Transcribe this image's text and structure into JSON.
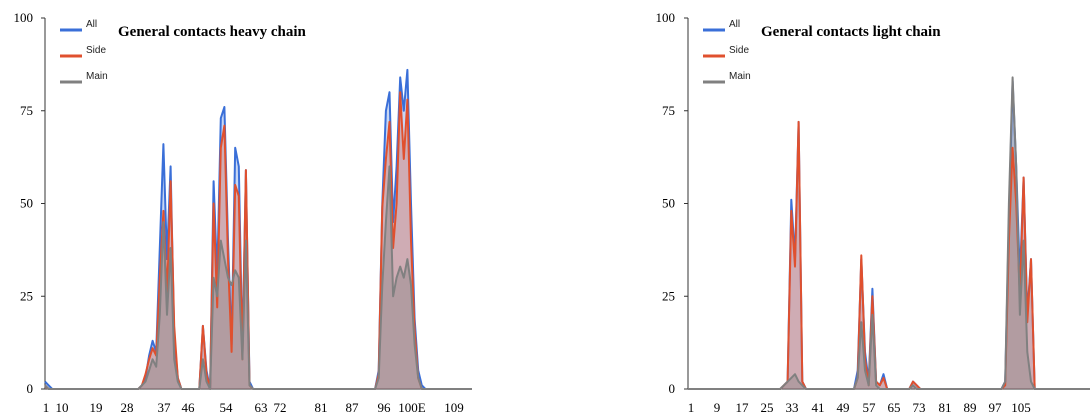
{
  "colors": {
    "all": "#3a6fd8",
    "side": "#e0502e",
    "main": "#808080",
    "area_fill": "#c69ea0",
    "axis": "#333333"
  },
  "chart_data": [
    {
      "type": "area",
      "title": "General contacts heavy chain",
      "xlabel": "",
      "ylabel": "",
      "ylim": [
        0,
        100
      ],
      "yticks": [
        "0",
        "25",
        "50",
        "75",
        "100"
      ],
      "xticks": [
        "1",
        "10",
        "19",
        "28",
        "37",
        "46",
        "54",
        "63",
        "72",
        "81",
        "87",
        "96",
        "100E",
        "109"
      ],
      "n_points": 120,
      "legend_position": "top-left",
      "grid": false,
      "series": [
        {
          "name": "All",
          "points": [
            [
              0,
              2
            ],
            [
              1,
              1
            ],
            [
              2,
              0
            ],
            [
              26,
              0
            ],
            [
              27,
              1
            ],
            [
              28,
              3
            ],
            [
              29,
              9
            ],
            [
              30,
              13
            ],
            [
              31,
              10
            ],
            [
              32,
              38
            ],
            [
              33,
              66
            ],
            [
              34,
              35
            ],
            [
              35,
              60
            ],
            [
              36,
              14
            ],
            [
              37,
              3
            ],
            [
              38,
              0
            ],
            [
              43,
              0
            ],
            [
              44,
              17
            ],
            [
              45,
              5
            ],
            [
              46,
              0
            ],
            [
              47,
              56
            ],
            [
              48,
              30
            ],
            [
              49,
              73
            ],
            [
              50,
              76
            ],
            [
              51,
              40
            ],
            [
              52,
              12
            ],
            [
              53,
              65
            ],
            [
              54,
              60
            ],
            [
              55,
              10
            ],
            [
              56,
              59
            ],
            [
              57,
              2
            ],
            [
              58,
              0
            ],
            [
              92,
              0
            ],
            [
              93,
              5
            ],
            [
              94,
              50
            ],
            [
              95,
              75
            ],
            [
              96,
              80
            ],
            [
              97,
              45
            ],
            [
              98,
              60
            ],
            [
              99,
              84
            ],
            [
              100,
              75
            ],
            [
              101,
              86
            ],
            [
              102,
              50
            ],
            [
              103,
              19
            ],
            [
              104,
              5
            ],
            [
              105,
              1
            ],
            [
              106,
              0
            ],
            [
              119,
              0
            ]
          ]
        },
        {
          "name": "Side",
          "points": [
            [
              0,
              1
            ],
            [
              1,
              0
            ],
            [
              26,
              0
            ],
            [
              27,
              1
            ],
            [
              28,
              4
            ],
            [
              29,
              8
            ],
            [
              30,
              11
            ],
            [
              31,
              9
            ],
            [
              32,
              30
            ],
            [
              33,
              48
            ],
            [
              34,
              25
            ],
            [
              35,
              56
            ],
            [
              36,
              17
            ],
            [
              37,
              3
            ],
            [
              38,
              0
            ],
            [
              43,
              0
            ],
            [
              44,
              17
            ],
            [
              45,
              4
            ],
            [
              46,
              0
            ],
            [
              47,
              50
            ],
            [
              48,
              22
            ],
            [
              49,
              65
            ],
            [
              50,
              71
            ],
            [
              51,
              35
            ],
            [
              52,
              10
            ],
            [
              53,
              55
            ],
            [
              54,
              52
            ],
            [
              55,
              8
            ],
            [
              56,
              59
            ],
            [
              57,
              1
            ],
            [
              58,
              0
            ],
            [
              92,
              0
            ],
            [
              93,
              4
            ],
            [
              94,
              49
            ],
            [
              95,
              62
            ],
            [
              96,
              72
            ],
            [
              97,
              38
            ],
            [
              98,
              50
            ],
            [
              99,
              80
            ],
            [
              100,
              62
            ],
            [
              101,
              78
            ],
            [
              102,
              40
            ],
            [
              103,
              16
            ],
            [
              104,
              3
            ],
            [
              105,
              0
            ],
            [
              119,
              0
            ]
          ]
        },
        {
          "name": "Main",
          "points": [
            [
              0,
              1
            ],
            [
              1,
              0
            ],
            [
              26,
              0
            ],
            [
              27,
              1
            ],
            [
              28,
              2
            ],
            [
              29,
              5
            ],
            [
              30,
              8
            ],
            [
              31,
              6
            ],
            [
              32,
              20
            ],
            [
              33,
              45
            ],
            [
              34,
              20
            ],
            [
              35,
              38
            ],
            [
              36,
              8
            ],
            [
              37,
              2
            ],
            [
              38,
              0
            ],
            [
              43,
              0
            ],
            [
              44,
              8
            ],
            [
              45,
              2
            ],
            [
              46,
              0
            ],
            [
              47,
              30
            ],
            [
              48,
              25
            ],
            [
              49,
              40
            ],
            [
              50,
              35
            ],
            [
              51,
              30
            ],
            [
              52,
              28
            ],
            [
              53,
              32
            ],
            [
              54,
              30
            ],
            [
              55,
              8
            ],
            [
              56,
              40
            ],
            [
              57,
              1
            ],
            [
              58,
              0
            ],
            [
              92,
              0
            ],
            [
              93,
              3
            ],
            [
              94,
              28
            ],
            [
              95,
              45
            ],
            [
              96,
              60
            ],
            [
              97,
              25
            ],
            [
              98,
              30
            ],
            [
              99,
              33
            ],
            [
              100,
              30
            ],
            [
              101,
              35
            ],
            [
              102,
              28
            ],
            [
              103,
              12
            ],
            [
              104,
              3
            ],
            [
              105,
              0
            ],
            [
              119,
              0
            ]
          ]
        }
      ]
    },
    {
      "type": "area",
      "title": "General contacts light chain",
      "xlabel": "",
      "ylabel": "",
      "ylim": [
        0,
        100
      ],
      "yticks": [
        "0",
        "25",
        "50",
        "75",
        "100"
      ],
      "xticks": [
        "1",
        "9",
        "17",
        "25",
        "33",
        "41",
        "49",
        "57",
        "65",
        "73",
        "81",
        "89",
        "97",
        "105"
      ],
      "n_points": 110,
      "legend_position": "top-left",
      "grid": false,
      "series": [
        {
          "name": "All",
          "points": [
            [
              0,
              0
            ],
            [
              25,
              0
            ],
            [
              26,
              1
            ],
            [
              27,
              2
            ],
            [
              28,
              51
            ],
            [
              29,
              35
            ],
            [
              30,
              72
            ],
            [
              31,
              2
            ],
            [
              32,
              0
            ],
            [
              45,
              0
            ],
            [
              46,
              5
            ],
            [
              47,
              35
            ],
            [
              48,
              10
            ],
            [
              49,
              2
            ],
            [
              50,
              27
            ],
            [
              51,
              2
            ],
            [
              52,
              1
            ],
            [
              53,
              4
            ],
            [
              54,
              0
            ],
            [
              60,
              0
            ],
            [
              61,
              2
            ],
            [
              62,
              1
            ],
            [
              63,
              0
            ],
            [
              85,
              0
            ],
            [
              86,
              2
            ],
            [
              87,
              45
            ],
            [
              88,
              83
            ],
            [
              89,
              60
            ],
            [
              90,
              30
            ],
            [
              91,
              57
            ],
            [
              92,
              20
            ],
            [
              93,
              35
            ],
            [
              94,
              0
            ],
            [
              109,
              0
            ]
          ]
        },
        {
          "name": "Side",
          "points": [
            [
              0,
              0
            ],
            [
              25,
              0
            ],
            [
              26,
              1
            ],
            [
              27,
              2
            ],
            [
              28,
              48
            ],
            [
              29,
              33
            ],
            [
              30,
              72
            ],
            [
              31,
              2
            ],
            [
              32,
              0
            ],
            [
              45,
              0
            ],
            [
              46,
              3
            ],
            [
              47,
              36
            ],
            [
              48,
              8
            ],
            [
              49,
              1
            ],
            [
              50,
              25
            ],
            [
              51,
              2
            ],
            [
              52,
              1
            ],
            [
              53,
              3
            ],
            [
              54,
              0
            ],
            [
              60,
              0
            ],
            [
              61,
              2
            ],
            [
              62,
              1
            ],
            [
              63,
              0
            ],
            [
              85,
              0
            ],
            [
              86,
              1
            ],
            [
              87,
              40
            ],
            [
              88,
              65
            ],
            [
              89,
              50
            ],
            [
              90,
              25
            ],
            [
              91,
              57
            ],
            [
              92,
              18
            ],
            [
              93,
              35
            ],
            [
              94,
              0
            ],
            [
              109,
              0
            ]
          ]
        },
        {
          "name": "Main",
          "points": [
            [
              0,
              0
            ],
            [
              25,
              0
            ],
            [
              26,
              1
            ],
            [
              27,
              2
            ],
            [
              28,
              3
            ],
            [
              29,
              4
            ],
            [
              30,
              2
            ],
            [
              31,
              1
            ],
            [
              32,
              0
            ],
            [
              45,
              0
            ],
            [
              46,
              3
            ],
            [
              47,
              18
            ],
            [
              48,
              5
            ],
            [
              49,
              1
            ],
            [
              50,
              20
            ],
            [
              51,
              1
            ],
            [
              52,
              0
            ],
            [
              60,
              0
            ],
            [
              61,
              1
            ],
            [
              62,
              0
            ],
            [
              85,
              0
            ],
            [
              86,
              2
            ],
            [
              87,
              50
            ],
            [
              88,
              84
            ],
            [
              89,
              60
            ],
            [
              90,
              20
            ],
            [
              91,
              40
            ],
            [
              92,
              10
            ],
            [
              93,
              2
            ],
            [
              94,
              0
            ],
            [
              109,
              0
            ]
          ]
        }
      ]
    }
  ]
}
